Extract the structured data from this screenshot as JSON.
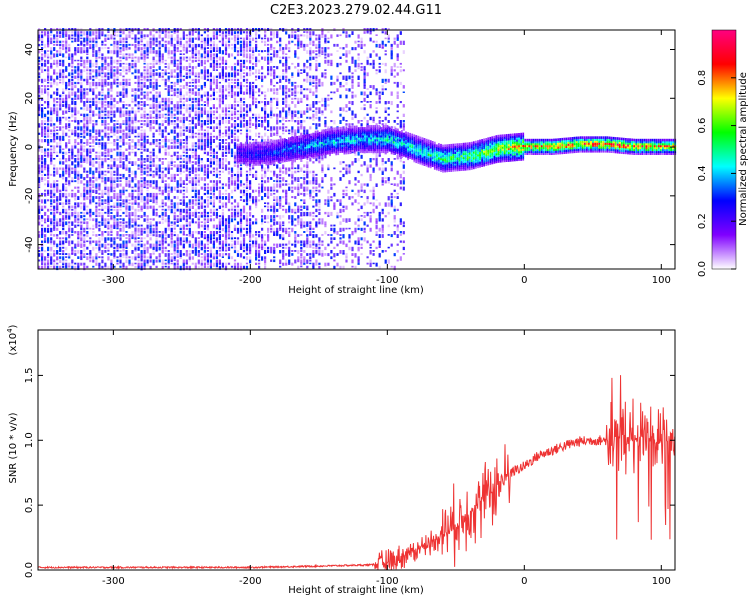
{
  "title": "C2E3.2023.279.02.44.G11",
  "chart_data": [
    {
      "type": "heatmap",
      "xlabel": "Height of straight line (km)",
      "ylabel": "Frequency (Hz)",
      "xlim": [
        -355,
        110
      ],
      "ylim": [
        -50,
        48
      ],
      "xticks": [
        -300,
        -200,
        -100,
        0,
        100
      ],
      "yticks": [
        -40,
        -20,
        0,
        20,
        40
      ],
      "colorbar": {
        "label": "Normalized spectral amplitude",
        "range": [
          0,
          1
        ],
        "ticks": [
          "0.0",
          "0.2",
          "0.4",
          "0.6",
          "0.8"
        ],
        "colors": [
          "#ffffff",
          "#8000ff",
          "#0000ff",
          "#00ffff",
          "#00ff00",
          "#ffff00",
          "#ff0000",
          "#ff0080"
        ]
      },
      "ridge": {
        "x": [
          -210,
          -190,
          -160,
          -140,
          -120,
          -100,
          -80,
          -60,
          -40,
          -20,
          0,
          20,
          40,
          60,
          80,
          105
        ],
        "frequency": [
          -3,
          -3,
          0,
          2,
          3,
          3,
          -1,
          -5,
          -4,
          -1,
          0,
          0,
          1,
          1,
          0,
          0
        ],
        "amplitude": [
          0.25,
          0.3,
          0.4,
          0.45,
          0.45,
          0.5,
          0.5,
          0.55,
          0.6,
          0.7,
          0.8,
          0.85,
          0.85,
          0.9,
          0.85,
          0.8
        ]
      }
    },
    {
      "type": "line",
      "xlabel": "Height of straight line (km)",
      "ylabel": "SNR (10 * v/v)",
      "scale_label": "(x10",
      "scale_exponent": "4",
      "xlim": [
        -355,
        110
      ],
      "ylim": [
        0,
        1.85
      ],
      "xticks": [
        -300,
        -200,
        -100,
        0,
        100
      ],
      "yticks": [
        "0.0",
        "0.5",
        "1.0",
        "1.5"
      ],
      "series": [
        {
          "color": "#ee3333",
          "x": [
            -355,
            -300,
            -250,
            -200,
            -150,
            -110,
            -100,
            -90,
            -80,
            -70,
            -60,
            -50,
            -40,
            -30,
            -20,
            -10,
            0,
            10,
            20,
            30,
            40,
            50,
            60,
            70,
            80,
            90,
            100,
            105,
            110
          ],
          "y": [
            0.02,
            0.02,
            0.02,
            0.02,
            0.03,
            0.04,
            0.06,
            0.1,
            0.15,
            0.2,
            0.28,
            0.35,
            0.45,
            0.55,
            0.65,
            0.75,
            0.8,
            0.88,
            0.92,
            0.96,
            0.99,
            1.0,
            1.0,
            1.02,
            1.0,
            0.98,
            1.0,
            0.99,
            0.98
          ]
        }
      ]
    }
  ]
}
